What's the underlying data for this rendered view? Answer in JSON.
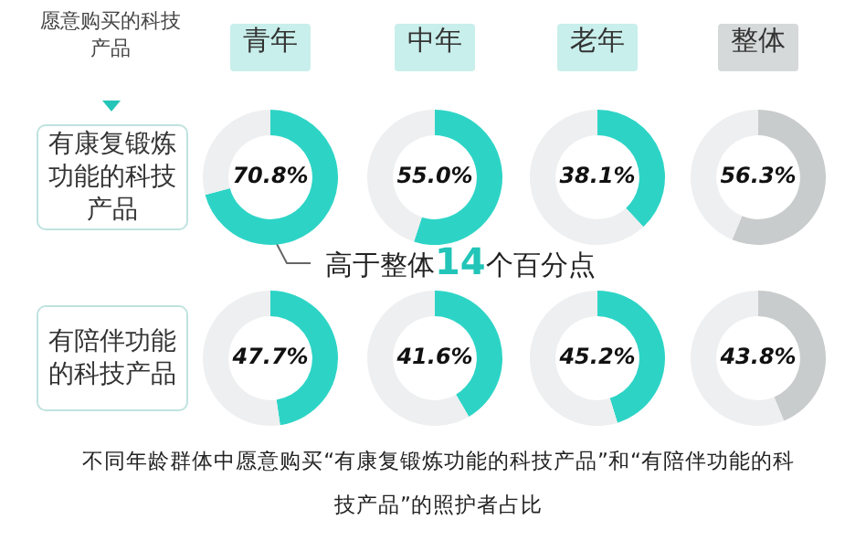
{
  "chart_data": [
    {
      "type": "other",
      "title": "愿意购买的科技产品",
      "annotations": [
        "有康复锻炼功能的科技产品",
        "有陪伴功能的科技产品",
        "高于整体14个百分点",
        "不同年龄群体中愿意购买“有康复锻炼功能的科技产品”和“有陪伴功能的科技产品”的照护者占比"
      ]
    },
    {
      "type": "donut",
      "title": "青年",
      "categories": [
        null,
        null
      ],
      "values": [
        70.8,
        29.2
      ],
      "colors": [
        "#2dd4c6",
        "#eeeff0"
      ],
      "value_labels": [
        "70.8%",
        null
      ]
    },
    {
      "type": "donut",
      "title": "中年",
      "categories": [
        null,
        null
      ],
      "values": [
        55.0,
        45.0
      ],
      "colors": [
        "#2dd4c6",
        "#eeeff0"
      ],
      "value_labels": [
        "55.0%",
        null
      ]
    },
    {
      "type": "donut",
      "title": "老年",
      "categories": [
        null,
        null
      ],
      "values": [
        38.1,
        61.9
      ],
      "colors": [
        "#2dd4c6",
        "#eeeff0"
      ],
      "value_labels": [
        "38.1%",
        null
      ]
    },
    {
      "type": "donut",
      "title": "整体",
      "categories": [
        null,
        null
      ],
      "values": [
        56.3,
        43.7
      ],
      "colors": [
        "#c9cccc",
        "#eeeff0"
      ],
      "value_labels": [
        "56.3%",
        null
      ]
    },
    {
      "type": "donut",
      "categories": [
        null,
        null
      ],
      "values": [
        47.7,
        52.3
      ],
      "colors": [
        "#2dd4c6",
        "#eeeff0"
      ],
      "value_labels": [
        "47.7%",
        null
      ]
    },
    {
      "type": "donut",
      "categories": [
        null,
        null
      ],
      "values": [
        41.6,
        58.4
      ],
      "colors": [
        "#2dd4c6",
        "#eeeff0"
      ],
      "value_labels": [
        "41.6%",
        null
      ]
    },
    {
      "type": "donut",
      "categories": [
        null,
        null
      ],
      "values": [
        45.2,
        54.8
      ],
      "colors": [
        "#2dd4c6",
        "#eeeff0"
      ],
      "value_labels": [
        "45.2%",
        null
      ]
    },
    {
      "type": "donut",
      "categories": [
        null,
        null
      ],
      "values": [
        43.8,
        56.2
      ],
      "colors": [
        "#c9cccc",
        "#eeeff0"
      ],
      "value_labels": [
        "43.8%",
        null
      ]
    }
  ]
}
